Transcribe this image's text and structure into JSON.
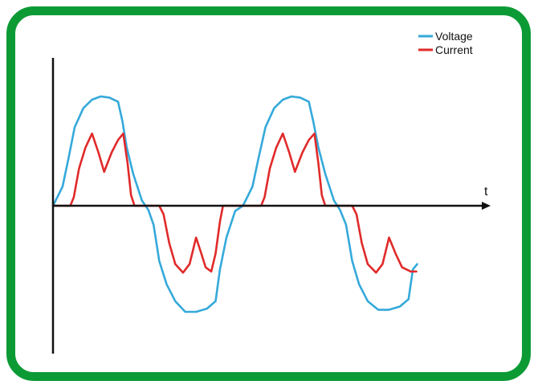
{
  "chart_data": {
    "type": "line",
    "title": "",
    "xlabel": "t",
    "ylabel": "",
    "xlim": [
      0,
      1
    ],
    "ylim": [
      -1,
      1
    ],
    "grid": false,
    "legend_position": "top-right",
    "series": [
      {
        "name": "Voltage",
        "color": "#35a9da",
        "points": [
          [
            0.0,
            0.0
          ],
          [
            0.01,
            0.08
          ],
          [
            0.022,
            0.18
          ],
          [
            0.036,
            0.45
          ],
          [
            0.05,
            0.74
          ],
          [
            0.07,
            0.92
          ],
          [
            0.09,
            1.0
          ],
          [
            0.11,
            1.03
          ],
          [
            0.13,
            1.02
          ],
          [
            0.15,
            0.98
          ],
          [
            0.16,
            0.8
          ],
          [
            0.17,
            0.55
          ],
          [
            0.185,
            0.3
          ],
          [
            0.205,
            0.05
          ],
          [
            0.22,
            -0.04
          ],
          [
            0.232,
            -0.18
          ],
          [
            0.245,
            -0.52
          ],
          [
            0.262,
            -0.74
          ],
          [
            0.282,
            -0.9
          ],
          [
            0.305,
            -1.0
          ],
          [
            0.33,
            -1.0
          ],
          [
            0.355,
            -0.97
          ],
          [
            0.375,
            -0.9
          ],
          [
            0.385,
            -0.6
          ],
          [
            0.4,
            -0.3
          ],
          [
            0.42,
            -0.05
          ],
          [
            0.438,
            0.0
          ],
          [
            0.448,
            0.08
          ],
          [
            0.46,
            0.18
          ],
          [
            0.474,
            0.45
          ],
          [
            0.49,
            0.74
          ],
          [
            0.51,
            0.92
          ],
          [
            0.53,
            1.0
          ],
          [
            0.55,
            1.03
          ],
          [
            0.57,
            1.02
          ],
          [
            0.59,
            0.98
          ],
          [
            0.6,
            0.8
          ],
          [
            0.612,
            0.55
          ],
          [
            0.628,
            0.3
          ],
          [
            0.648,
            0.05
          ],
          [
            0.662,
            -0.04
          ],
          [
            0.676,
            -0.18
          ],
          [
            0.69,
            -0.52
          ],
          [
            0.706,
            -0.74
          ],
          [
            0.726,
            -0.9
          ],
          [
            0.75,
            -0.98
          ],
          [
            0.775,
            -0.98
          ],
          [
            0.8,
            -0.95
          ],
          [
            0.82,
            -0.88
          ],
          [
            0.83,
            -0.6
          ],
          [
            0.84,
            -0.55
          ]
        ]
      },
      {
        "name": "Current",
        "color": "#e02a2a",
        "points": [
          [
            0.0,
            0.0
          ],
          [
            0.04,
            0.0
          ],
          [
            0.048,
            0.08
          ],
          [
            0.06,
            0.35
          ],
          [
            0.075,
            0.55
          ],
          [
            0.09,
            0.68
          ],
          [
            0.105,
            0.5
          ],
          [
            0.118,
            0.32
          ],
          [
            0.135,
            0.5
          ],
          [
            0.15,
            0.62
          ],
          [
            0.162,
            0.68
          ],
          [
            0.172,
            0.4
          ],
          [
            0.18,
            0.1
          ],
          [
            0.188,
            0.0
          ],
          [
            0.245,
            0.0
          ],
          [
            0.255,
            -0.08
          ],
          [
            0.268,
            -0.35
          ],
          [
            0.282,
            -0.55
          ],
          [
            0.3,
            -0.63
          ],
          [
            0.315,
            -0.55
          ],
          [
            0.33,
            -0.3
          ],
          [
            0.342,
            -0.45
          ],
          [
            0.352,
            -0.58
          ],
          [
            0.365,
            -0.62
          ],
          [
            0.375,
            -0.45
          ],
          [
            0.385,
            -0.15
          ],
          [
            0.392,
            0.0
          ],
          [
            0.48,
            0.0
          ],
          [
            0.488,
            0.08
          ],
          [
            0.5,
            0.35
          ],
          [
            0.515,
            0.55
          ],
          [
            0.53,
            0.68
          ],
          [
            0.545,
            0.5
          ],
          [
            0.558,
            0.32
          ],
          [
            0.575,
            0.5
          ],
          [
            0.59,
            0.62
          ],
          [
            0.603,
            0.68
          ],
          [
            0.612,
            0.4
          ],
          [
            0.62,
            0.1
          ],
          [
            0.628,
            0.0
          ],
          [
            0.69,
            0.0
          ],
          [
            0.7,
            -0.08
          ],
          [
            0.712,
            -0.35
          ],
          [
            0.726,
            -0.55
          ],
          [
            0.745,
            -0.63
          ],
          [
            0.76,
            -0.55
          ],
          [
            0.775,
            -0.3
          ],
          [
            0.79,
            -0.45
          ],
          [
            0.805,
            -0.58
          ],
          [
            0.825,
            -0.62
          ],
          [
            0.838,
            -0.62
          ]
        ]
      }
    ]
  }
}
